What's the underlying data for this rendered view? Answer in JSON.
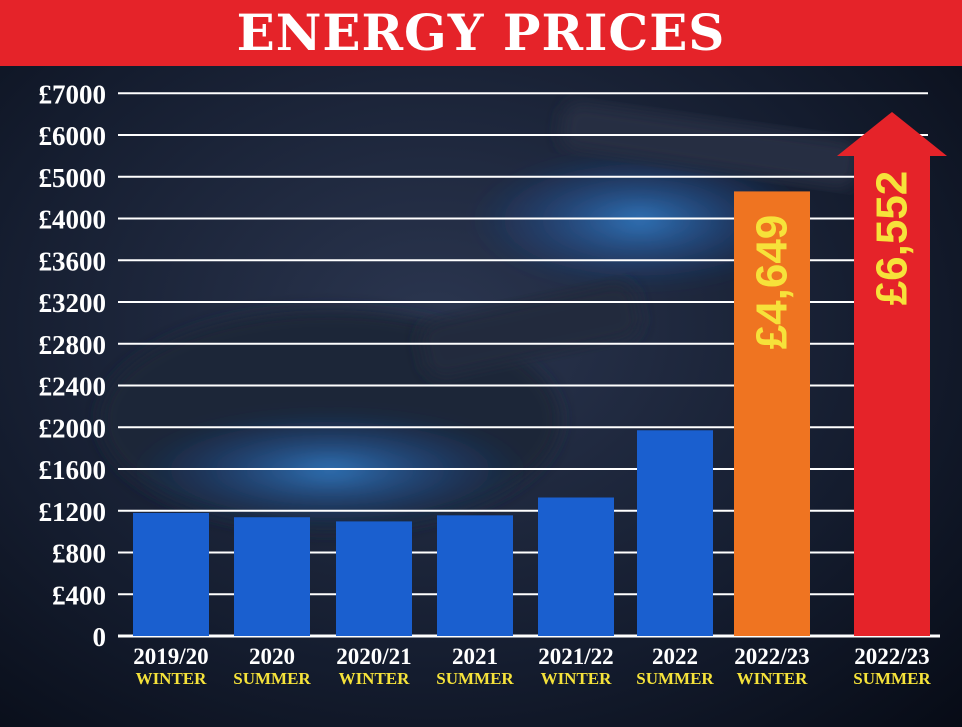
{
  "header": {
    "title": "ENERGY PRICES"
  },
  "colors": {
    "title_bar": "#e52329",
    "bar_default": "#1a5fcf",
    "bar_highlight": "#ef7421",
    "arrow": "#e52329",
    "label_yellow": "#f6e23a",
    "gridline": "#ffffff"
  },
  "chart_data": {
    "type": "bar",
    "title": "ENERGY PRICES",
    "xlabel": "",
    "ylabel": "",
    "y_ticks": [
      "0",
      "£400",
      "£800",
      "£1200",
      "£1600",
      "£2000",
      "£2400",
      "£2800",
      "£3200",
      "£3600",
      "£4000",
      "£5000",
      "£6000",
      "£7000"
    ],
    "y_tick_values": [
      0,
      400,
      800,
      1200,
      1600,
      2000,
      2400,
      2800,
      3200,
      3600,
      4000,
      5000,
      6000,
      7000
    ],
    "grid": true,
    "categories": [
      {
        "period": "2019/20",
        "season": "WINTER"
      },
      {
        "period": "2020",
        "season": "SUMMER"
      },
      {
        "period": "2020/21",
        "season": "WINTER"
      },
      {
        "period": "2021",
        "season": "SUMMER"
      },
      {
        "period": "2021/22",
        "season": "WINTER"
      },
      {
        "period": "2022",
        "season": "SUMMER"
      },
      {
        "period": "2022/23",
        "season": "WINTER"
      },
      {
        "period": "2022/23",
        "season": "SUMMER"
      }
    ],
    "values": [
      1179,
      1138,
      1098,
      1156,
      1327,
      1971,
      4649,
      6552
    ],
    "data_labels": [
      "",
      "",
      "",
      "",
      "",
      "",
      "£4,649",
      "£6,552"
    ],
    "styles": [
      "bar",
      "bar",
      "bar",
      "bar",
      "bar",
      "bar",
      "bar-highlight",
      "arrow"
    ]
  }
}
